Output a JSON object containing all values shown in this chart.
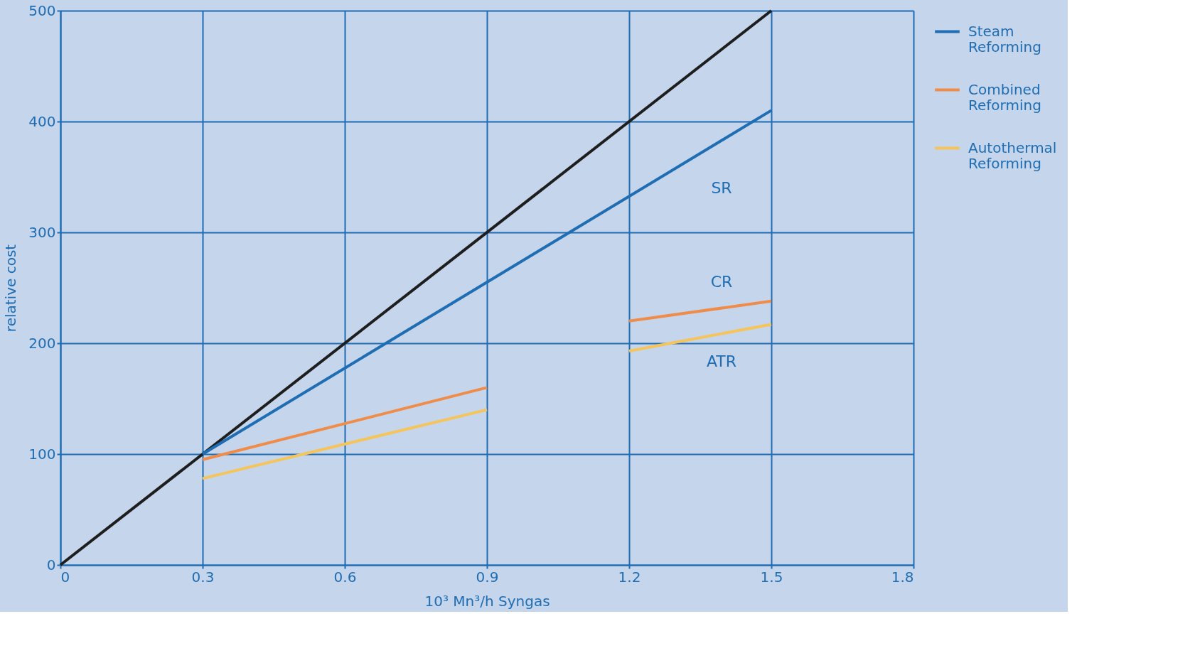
{
  "chart_data": {
    "type": "line",
    "xlabel": "10³ Mn³/h Syngas",
    "ylabel": "relative cost",
    "xlim": [
      0,
      1.8
    ],
    "xticks": [
      0,
      0.3,
      0.6,
      0.9,
      1.2,
      1.5,
      1.8
    ],
    "ylim": [
      0,
      500
    ],
    "yticks": [
      0,
      100,
      200,
      300,
      400,
      500
    ],
    "grid": true,
    "legend": "right",
    "line_style": "solid",
    "series": [
      {
        "color": "#1e1e1e",
        "x": [
          0,
          1.5
        ],
        "values": [
          0,
          500
        ]
      },
      {
        "name": "Steam Reforming",
        "color": "#1f6db3",
        "x": [
          0.3,
          1.5
        ],
        "values": [
          100,
          410
        ]
      },
      {
        "name": "Combined Reforming",
        "color": "#f08c4a",
        "x": [
          0.3,
          0.9,
          1.05,
          1.2,
          1.5
        ],
        "values": [
          95,
          160,
          null,
          220,
          238
        ]
      },
      {
        "name": "Autothermal Reforming",
        "color": "#f5c45a",
        "x": [
          0.3,
          0.9,
          1.05,
          1.2,
          1.5
        ],
        "values": [
          78,
          140,
          null,
          193,
          217
        ]
      }
    ],
    "annotations": [
      "SR",
      "CR",
      "ATR"
    ]
  }
}
